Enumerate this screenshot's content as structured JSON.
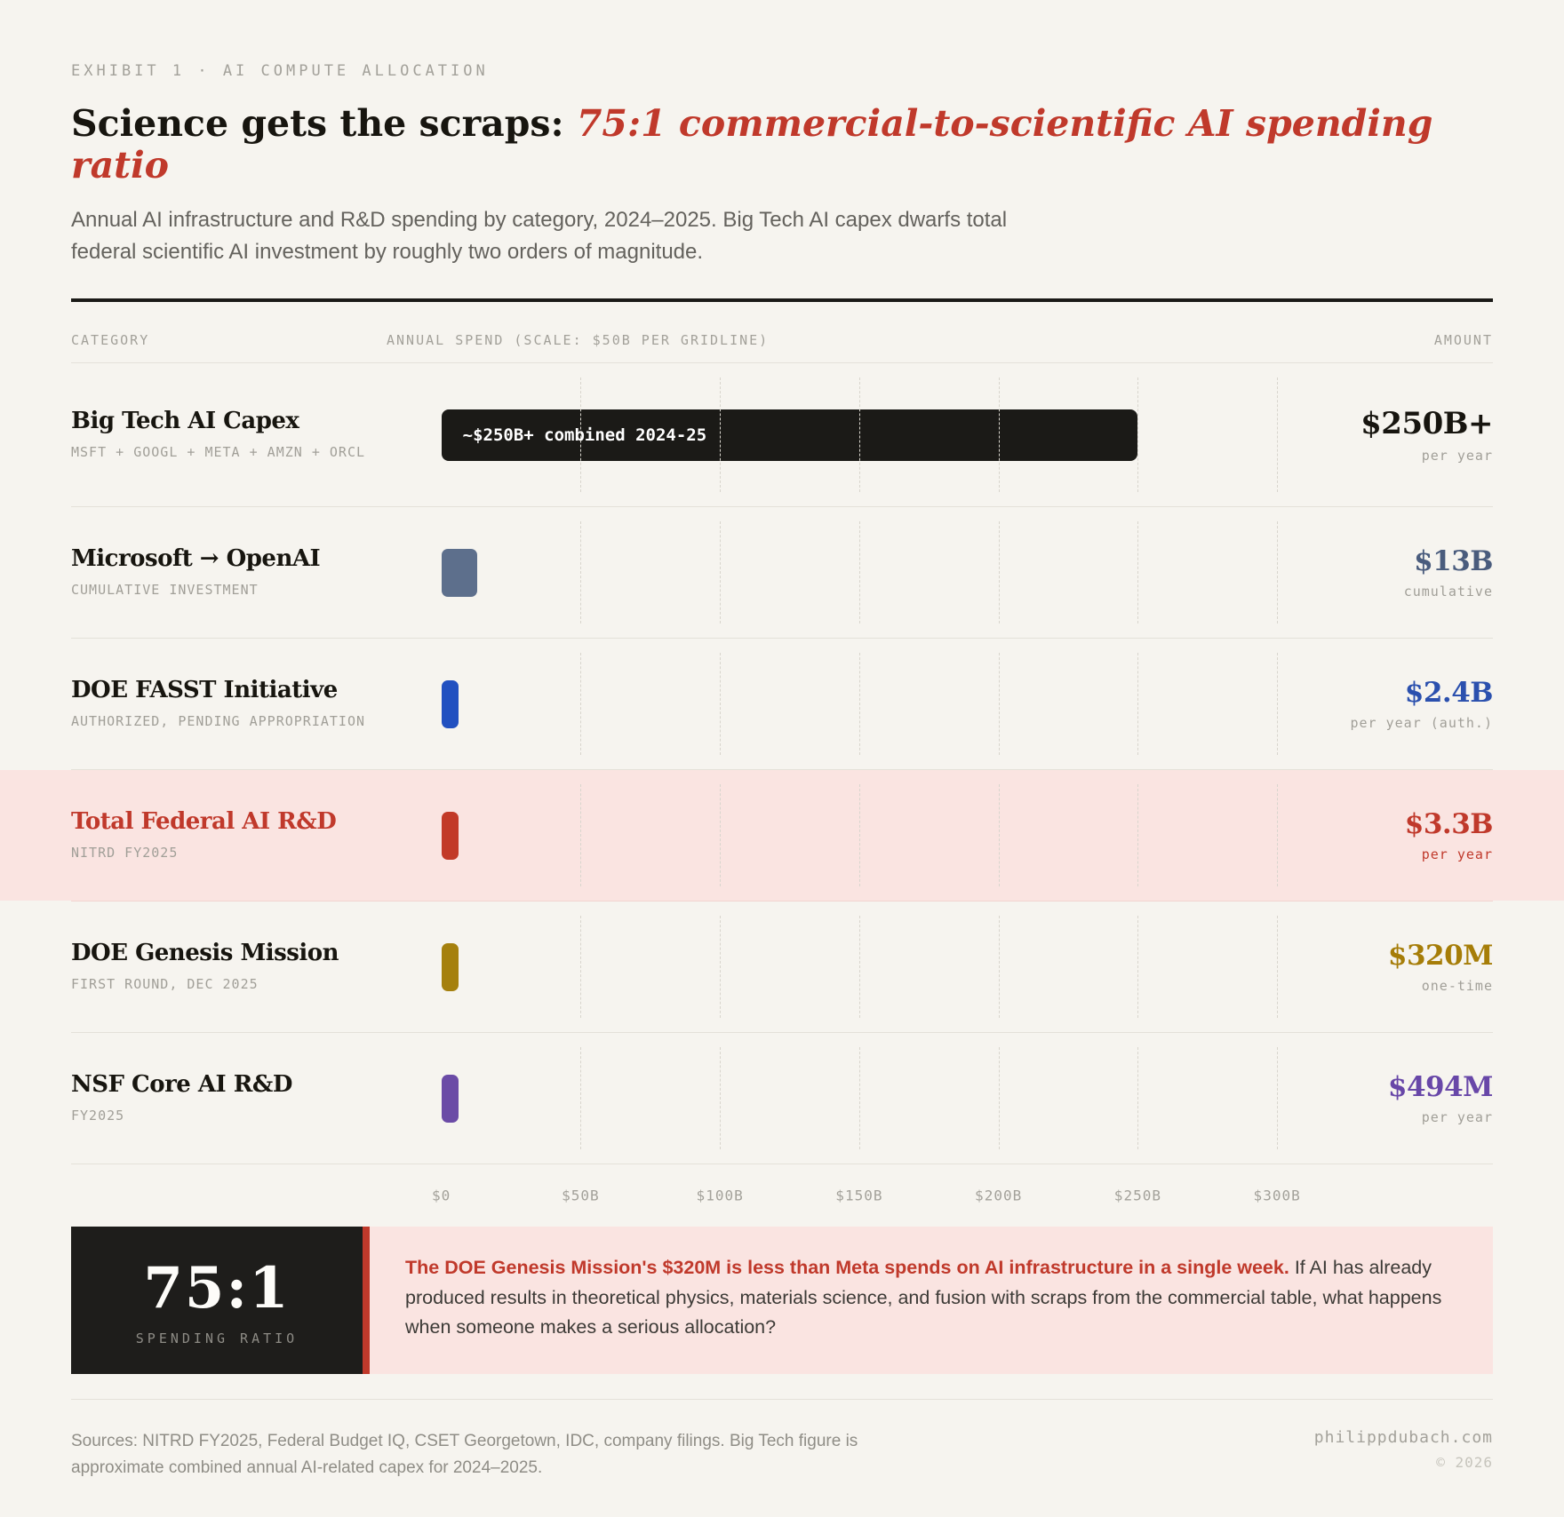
{
  "exhibit_label": "EXHIBIT 1 · AI COMPUTE ALLOCATION",
  "title": {
    "lead": "Science gets the scraps: ",
    "emphasis": "75:1 commercial-to-scientific AI spending ratio"
  },
  "subtitle": "Annual AI infrastructure and R&D spending by category, 2024–2025. Big Tech AI capex dwarfs total federal scientific AI investment by roughly two orders of magnitude.",
  "table": {
    "headers": {
      "category": "CATEGORY",
      "spend": "ANNUAL SPEND (SCALE: $50B PER GRIDLINE)",
      "amount": "AMOUNT"
    },
    "rows": [
      {
        "name": "Big Tech AI Capex",
        "sub": "MSFT + GOOGL + META + AMZN + ORCL",
        "value_b": 250,
        "bar_label": "~$250B+ combined 2024-25",
        "bar_color": "#1b1a17",
        "amount": "$250B+",
        "amount_sub": "per year",
        "amount_color": "#17150f",
        "highlight": false
      },
      {
        "name": "Microsoft → OpenAI",
        "sub": "CUMULATIVE INVESTMENT",
        "value_b": 13,
        "bar_label": "",
        "bar_color": "#5d6f8c",
        "amount": "$13B",
        "amount_sub": "cumulative",
        "amount_color": "#4a5c7d",
        "highlight": false
      },
      {
        "name": "DOE FASST Initiative",
        "sub": "AUTHORIZED, PENDING APPROPRIATION",
        "value_b": 2.4,
        "bar_label": "",
        "bar_color": "#2150c0",
        "amount": "$2.4B",
        "amount_sub": "per year (auth.)",
        "amount_color": "#2b50ae",
        "highlight": false
      },
      {
        "name": "Total Federal AI R&D",
        "sub": "NITRD FY2025",
        "value_b": 3.3,
        "bar_label": "",
        "bar_color": "#c23a28",
        "amount": "$3.3B",
        "amount_sub": "per year",
        "amount_color": "#c0392b",
        "name_color": "#c0392b",
        "amount_sub_color": "#c0392b",
        "highlight": true
      },
      {
        "name": "DOE Genesis Mission",
        "sub": "FIRST ROUND, DEC 2025",
        "value_b": 0.32,
        "bar_label": "",
        "bar_color": "#a5800e",
        "amount": "$320M",
        "amount_sub": "one-time",
        "amount_color": "#a67d08",
        "highlight": false
      },
      {
        "name": "NSF Core AI R&D",
        "sub": "FY2025",
        "value_b": 0.494,
        "bar_label": "",
        "bar_color": "#6b4ba6",
        "amount": "$494M",
        "amount_sub": "per year",
        "amount_color": "#6847a8",
        "highlight": false
      }
    ]
  },
  "axis": {
    "ticks": [
      "$0",
      "$50B",
      "$100B",
      "$150B",
      "$200B",
      "$250B",
      "$300B"
    ]
  },
  "callout": {
    "ratio": "75:1",
    "ratio_label": "SPENDING RATIO",
    "lead": "The DOE Genesis Mission's $320M is less than Meta spends on AI infrastructure in a single week.",
    "body": "If AI has already produced results in theoretical physics, materials science, and fusion with scraps from the commercial table, what happens when someone makes a serious allocation?"
  },
  "footer": {
    "sources": "Sources: NITRD FY2025, Federal Budget IQ, CSET Georgetown, IDC, company filings. Big Tech figure is approximate combined annual AI-related capex for 2024–2025.",
    "site": "philippdubach.com",
    "copyright": "© 2026"
  },
  "colors": {
    "background": "#f6f4ef",
    "accent_red": "#c0392b",
    "highlight_pink": "#fae4e1",
    "ink": "#17150f"
  },
  "chart_data": {
    "type": "bar",
    "orientation": "horizontal",
    "title": "Science gets the scraps: 75:1 commercial-to-scientific AI spending ratio",
    "categories": [
      "Big Tech AI Capex",
      "Microsoft → OpenAI",
      "DOE FASST Initiative",
      "Total Federal AI R&D",
      "DOE Genesis Mission",
      "NSF Core AI R&D"
    ],
    "values": [
      250,
      13,
      2.4,
      3.3,
      0.32,
      0.494
    ],
    "value_labels": [
      "$250B+",
      "$13B",
      "$2.4B",
      "$3.3B",
      "$320M",
      "$494M"
    ],
    "xlabel": "ANNUAL SPEND (SCALE: $50B PER GRIDLINE)",
    "ylabel": "CATEGORY",
    "xlim": [
      0,
      320
    ],
    "xticks_b": [
      0,
      50,
      100,
      150,
      200,
      250,
      300
    ],
    "grid": "dashed-vertical-every-50B",
    "units": "USD billions"
  }
}
